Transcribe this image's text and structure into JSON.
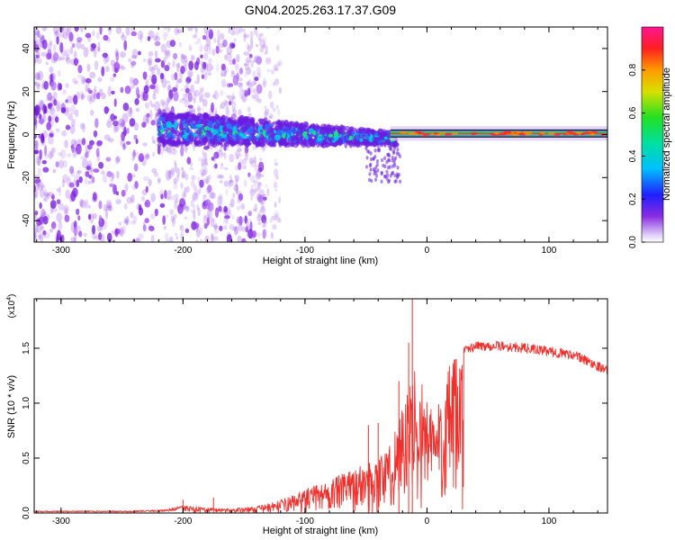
{
  "figure_title": "GN04.2025.263.17.37.G09",
  "colors": {
    "snr_line": "#f0302c",
    "band": "#1fe08a",
    "background": "#ffffff"
  },
  "chart_data": [
    {
      "type": "heatmap",
      "name": "spectrogram",
      "xlabel": "Height of straight line (km)",
      "ylabel": "Frequency (Hz)",
      "xlim": [
        -322,
        148
      ],
      "ylim": [
        -50,
        50
      ],
      "x_ticks": [
        -300,
        -200,
        -100,
        0,
        100
      ],
      "x_tick_labels": [
        "-300",
        "-200",
        "-100",
        "0",
        "100"
      ],
      "y_ticks": [
        -40,
        -20,
        0,
        20,
        40
      ],
      "y_tick_labels": [
        "-40",
        "-20",
        "0",
        "20",
        "40"
      ],
      "colorbar": {
        "label": "Normalized spectral amplitude",
        "range": [
          0,
          1
        ],
        "ticks": [
          0.0,
          0.2,
          0.4,
          0.6,
          0.8
        ],
        "tick_labels": [
          "0.0",
          "0.2",
          "0.4",
          "0.6",
          "0.8"
        ],
        "colormap": "rainbow (violet to red to magenta)"
      },
      "description_values": {
        "dominant_frequency_hz": 0.5,
        "band_start_km": -30,
        "band_end_km": 148
      }
    },
    {
      "type": "line",
      "name": "snr",
      "xlabel": "Height of straight line (km)",
      "ylabel": "SNR (10 * v/v)",
      "multiplier_label": "(x10",
      "multiplier_exponent": "4",
      "multiplier_close": ")",
      "xlim": [
        -322,
        148
      ],
      "ylim": [
        0,
        1.95
      ],
      "x_ticks": [
        -300,
        -200,
        -100,
        0,
        100
      ],
      "x_tick_labels": [
        "-300",
        "-200",
        "-100",
        "0",
        "100"
      ],
      "y_ticks": [
        0.0,
        0.5,
        1.0,
        1.5
      ],
      "y_tick_labels": [
        "0.0",
        "0.5",
        "1.0",
        "1.5"
      ],
      "envelope": {
        "x": [
          -322,
          -250,
          -215,
          -200,
          -180,
          -160,
          -140,
          -125,
          -110,
          -95,
          -80,
          -65,
          -50,
          -40,
          -30,
          -25,
          -20,
          -15,
          -12,
          -10,
          -5,
          0,
          5,
          10,
          15,
          20,
          30,
          40,
          60,
          80,
          100,
          120,
          140,
          148
        ],
        "y": [
          0.02,
          0.02,
          0.03,
          0.07,
          0.05,
          0.04,
          0.06,
          0.1,
          0.16,
          0.24,
          0.3,
          0.38,
          0.45,
          0.52,
          0.62,
          0.85,
          1.05,
          1.12,
          1.28,
          1.35,
          1.22,
          1.1,
          0.95,
          1.05,
          1.25,
          1.38,
          1.47,
          1.52,
          1.52,
          1.5,
          1.47,
          1.44,
          1.34,
          1.3
        ]
      },
      "spikes": {
        "x": [
          -12,
          -15,
          -23,
          -40,
          -48,
          -175,
          -200
        ],
        "y": [
          1.95,
          1.55,
          1.2,
          0.82,
          0.8,
          0.14,
          0.12
        ]
      }
    }
  ]
}
